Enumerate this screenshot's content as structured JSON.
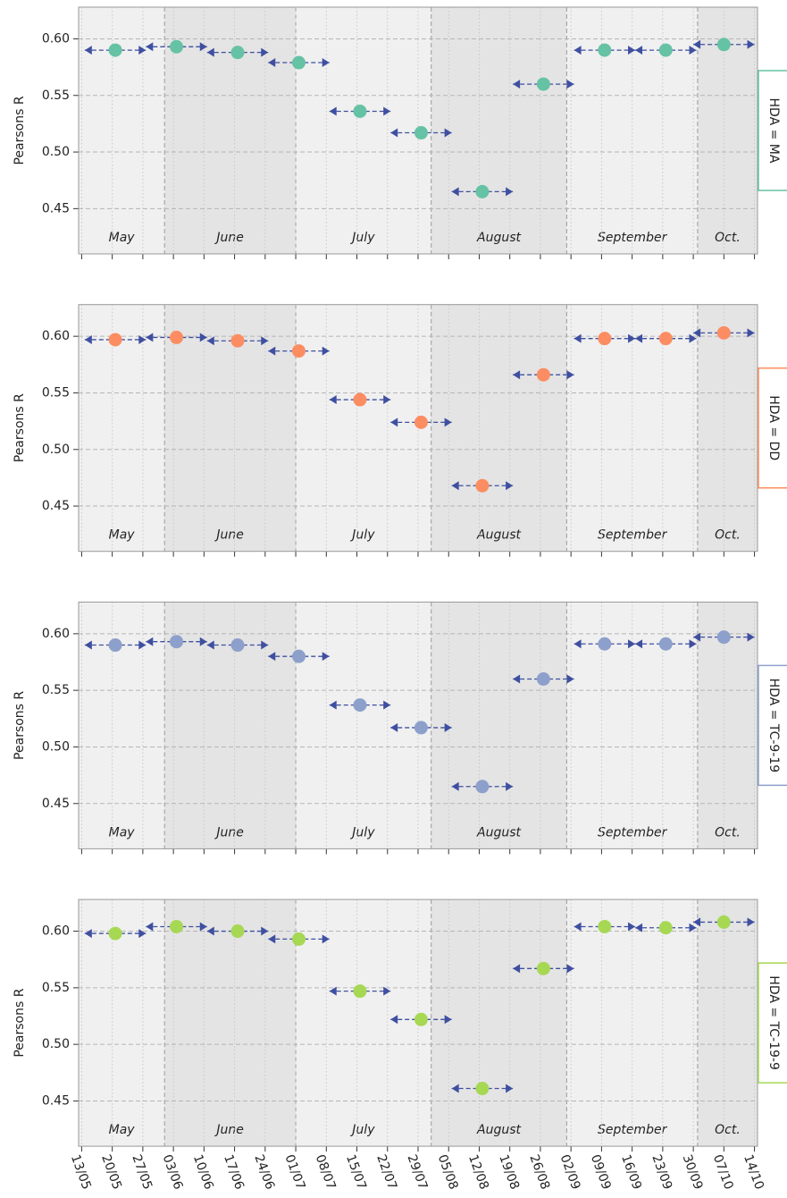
{
  "chart_data": [
    {
      "type": "scatter",
      "facet": "HDA = MA",
      "ylabel": "Pearsons R",
      "color": "#66c2a5",
      "interval_color": "#3f4fa0",
      "x": [
        1.1,
        3.1,
        5.1,
        7.1,
        9.1,
        11.1,
        13.1,
        15.1,
        17.1,
        19.1,
        21.0
      ],
      "xerr": [
        1,
        1,
        1,
        1,
        1,
        1,
        1,
        1,
        1,
        1,
        1
      ],
      "values": [
        0.59,
        0.593,
        0.588,
        0.579,
        0.536,
        0.517,
        0.465,
        0.56,
        0.59,
        0.59,
        0.595
      ],
      "xlim": [
        -0.1,
        22.1
      ],
      "ylim": [
        0.41,
        0.628
      ],
      "yticks": [
        0.45,
        {
          "value": 0.5,
          "label": "0.50"
        },
        0.55,
        {
          "value": 0.6,
          "label": "0.60"
        }
      ],
      "months": [
        {
          "label": "May",
          "start": -0.1,
          "end": 2.71
        },
        {
          "label": "June",
          "start": 2.71,
          "end": 7
        },
        {
          "label": "July",
          "start": 7,
          "end": 11.43
        },
        {
          "label": "August",
          "start": 11.43,
          "end": 15.86
        },
        {
          "label": "September",
          "start": 15.86,
          "end": 20.14
        },
        {
          "label": "Oct.",
          "start": 20.14,
          "end": 22.1
        }
      ]
    },
    {
      "type": "scatter",
      "facet": "HDA = DD",
      "ylabel": "Pearsons R",
      "color": "#fc8d62",
      "interval_color": "#3f4fa0",
      "x": [
        1.1,
        3.1,
        5.1,
        7.1,
        9.1,
        11.1,
        13.1,
        15.1,
        17.1,
        19.1,
        21.0
      ],
      "xerr": [
        1,
        1,
        1,
        1,
        1,
        1,
        1,
        1,
        1,
        1,
        1
      ],
      "values": [
        0.597,
        0.599,
        0.596,
        0.587,
        0.544,
        0.524,
        0.468,
        0.566,
        0.598,
        0.598,
        0.603
      ],
      "xlim": [
        -0.1,
        22.1
      ],
      "ylim": [
        0.41,
        0.628
      ],
      "yticks": [
        0.45,
        {
          "value": 0.5,
          "label": "0.50"
        },
        0.55,
        {
          "value": 0.6,
          "label": "0.60"
        }
      ],
      "months": [
        {
          "label": "May",
          "start": -0.1,
          "end": 2.71
        },
        {
          "label": "June",
          "start": 2.71,
          "end": 7
        },
        {
          "label": "July",
          "start": 7,
          "end": 11.43
        },
        {
          "label": "August",
          "start": 11.43,
          "end": 15.86
        },
        {
          "label": "September",
          "start": 15.86,
          "end": 20.14
        },
        {
          "label": "Oct.",
          "start": 20.14,
          "end": 22.1
        }
      ]
    },
    {
      "type": "scatter",
      "facet": "HDA = TC-9-19",
      "ylabel": "Pearsons R",
      "color": "#8da0cb",
      "interval_color": "#3f4fa0",
      "x": [
        1.1,
        3.1,
        5.1,
        7.1,
        9.1,
        11.1,
        13.1,
        15.1,
        17.1,
        19.1,
        21.0
      ],
      "xerr": [
        1,
        1,
        1,
        1,
        1,
        1,
        1,
        1,
        1,
        1,
        1
      ],
      "values": [
        0.59,
        0.593,
        0.59,
        0.58,
        0.537,
        0.517,
        0.465,
        0.56,
        0.591,
        0.591,
        0.597
      ],
      "xlim": [
        -0.1,
        22.1
      ],
      "ylim": [
        0.41,
        0.628
      ],
      "yticks": [
        0.45,
        {
          "value": 0.5,
          "label": "0.50"
        },
        0.55,
        {
          "value": 0.6,
          "label": "0.60"
        }
      ],
      "months": [
        {
          "label": "May",
          "start": -0.1,
          "end": 2.71
        },
        {
          "label": "June",
          "start": 2.71,
          "end": 7
        },
        {
          "label": "July",
          "start": 7,
          "end": 11.43
        },
        {
          "label": "August",
          "start": 11.43,
          "end": 15.86
        },
        {
          "label": "September",
          "start": 15.86,
          "end": 20.14
        },
        {
          "label": "Oct.",
          "start": 20.14,
          "end": 22.1
        }
      ]
    },
    {
      "type": "scatter",
      "facet": "HDA = TC-19-9",
      "ylabel": "Pearsons R",
      "color": "#a6d854",
      "interval_color": "#3f4fa0",
      "x": [
        1.1,
        3.1,
        5.1,
        7.1,
        9.1,
        11.1,
        13.1,
        15.1,
        17.1,
        19.1,
        21.0
      ],
      "xerr": [
        1,
        1,
        1,
        1,
        1,
        1,
        1,
        1,
        1,
        1,
        1
      ],
      "values": [
        0.598,
        0.604,
        0.6,
        0.593,
        0.547,
        0.522,
        0.461,
        0.567,
        0.604,
        0.603,
        0.608
      ],
      "xlim": [
        -0.1,
        22.1
      ],
      "ylim": [
        0.41,
        0.628
      ],
      "yticks": [
        0.45,
        {
          "value": 0.5,
          "label": "0.50"
        },
        0.55,
        {
          "value": 0.6,
          "label": "0.60"
        }
      ],
      "months": [
        {
          "label": "May",
          "start": -0.1,
          "end": 2.71
        },
        {
          "label": "June",
          "start": 2.71,
          "end": 7
        },
        {
          "label": "July",
          "start": 7,
          "end": 11.43
        },
        {
          "label": "August",
          "start": 11.43,
          "end": 15.86
        },
        {
          "label": "September",
          "start": 15.86,
          "end": 20.14
        },
        {
          "label": "Oct.",
          "start": 20.14,
          "end": 22.1
        }
      ],
      "xticks": [
        {
          "value": 0,
          "label": "13/05"
        },
        {
          "value": 1,
          "label": "20/05"
        },
        {
          "value": 2,
          "label": "27/05"
        },
        {
          "value": 3,
          "label": "03/06"
        },
        {
          "value": 4,
          "label": "10/06"
        },
        {
          "value": 5,
          "label": "17/06"
        },
        {
          "value": 6,
          "label": "24/06"
        },
        {
          "value": 7,
          "label": "01/07"
        },
        {
          "value": 8,
          "label": "08/07"
        },
        {
          "value": 9,
          "label": "15/07"
        },
        {
          "value": 10,
          "label": "22/07"
        },
        {
          "value": 11,
          "label": "29/07"
        },
        {
          "value": 12,
          "label": "05/08"
        },
        {
          "value": 13,
          "label": "12/08"
        },
        {
          "value": 14,
          "label": "19/08"
        },
        {
          "value": 15,
          "label": "26/08"
        },
        {
          "value": 16,
          "label": "02/09"
        },
        {
          "value": 17,
          "label": "09/09"
        },
        {
          "value": 18,
          "label": "16/09"
        },
        {
          "value": 19,
          "label": "23/09"
        },
        {
          "value": 20,
          "label": "30/09"
        },
        {
          "value": 21,
          "label": "07/10"
        },
        {
          "value": 22,
          "label": "14/10"
        }
      ]
    }
  ]
}
